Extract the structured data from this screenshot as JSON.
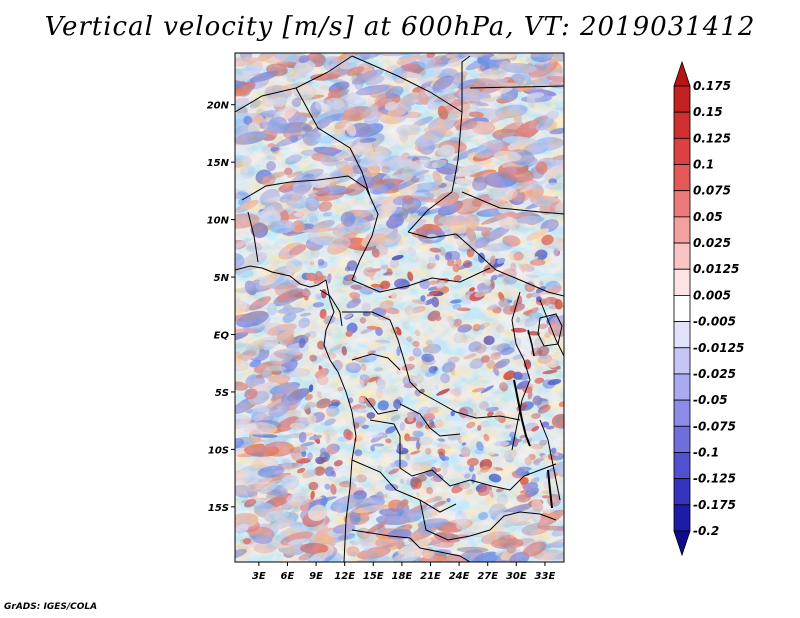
{
  "title": "Vertical velocity [m/s] at 600hPa, VT: 2019031412",
  "footer": "GrADS: IGES/COLA",
  "map": {
    "lat_labels": [
      "20N",
      "15N",
      "10N",
      "5N",
      "EQ",
      "5S",
      "10S",
      "15S"
    ],
    "lon_labels": [
      "3E",
      "6E",
      "9E",
      "12E",
      "15E",
      "18E",
      "21E",
      "24E",
      "27E",
      "30E",
      "33E"
    ],
    "lat_values": [
      20,
      15,
      10,
      5,
      0,
      -5,
      -10,
      -15
    ],
    "lon_values": [
      3,
      6,
      9,
      12,
      15,
      18,
      21,
      24,
      27,
      30,
      33
    ],
    "lon_range": [
      0.5,
      35
    ],
    "lat_range": [
      -19.8,
      24.5
    ]
  },
  "colorbar": {
    "labels": [
      "0.175",
      "0.15",
      "0.125",
      "0.1",
      "0.075",
      "0.05",
      "0.025",
      "0.0125",
      "0.005",
      "-0.005",
      "-0.0125",
      "-0.025",
      "-0.05",
      "-0.075",
      "-0.1",
      "-0.125",
      "-0.175",
      "-0.2"
    ],
    "colors": [
      "#b81414",
      "#c42222",
      "#d02f2f",
      "#dc4040",
      "#e55858",
      "#ec7a7a",
      "#f3a0a0",
      "#f8c4c4",
      "#fce4e4",
      "#ffffff",
      "#e2e2fb",
      "#c6c6f6",
      "#aaaaf0",
      "#8c8ce8",
      "#6e6edd",
      "#5050d0",
      "#3434bf",
      "#1c1ca8",
      "#0c0c8c"
    ]
  }
}
